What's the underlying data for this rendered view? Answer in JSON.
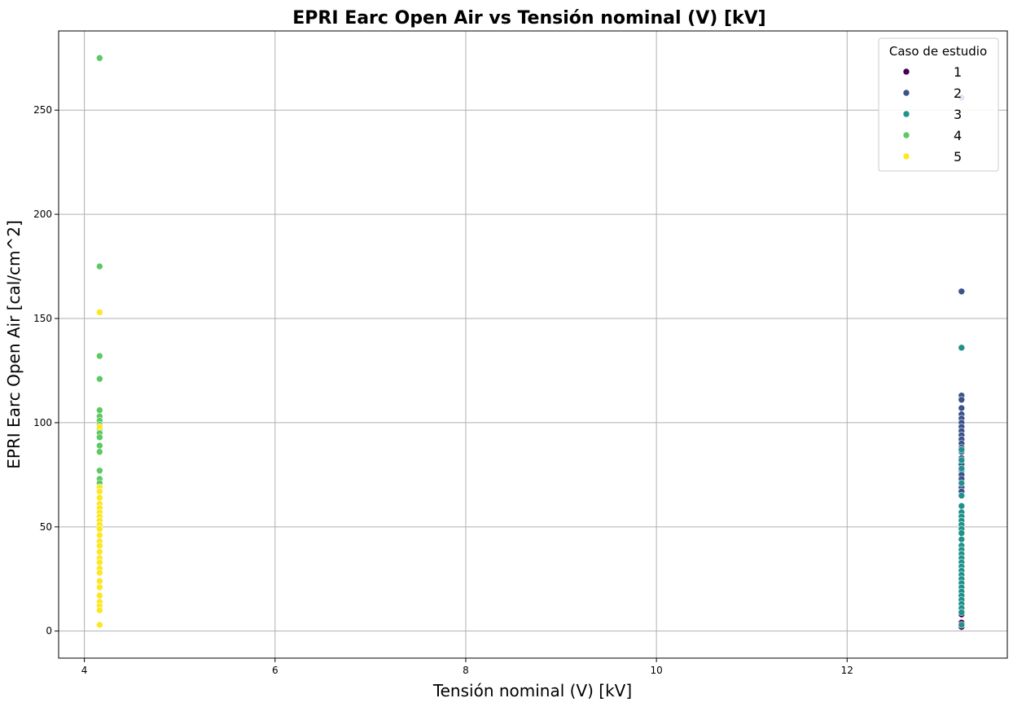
{
  "chart_data": {
    "type": "scatter",
    "title": "EPRI Earc Open Air vs Tensión nominal (V) [kV]",
    "xlabel": "Tensión nominal (V) [kV]",
    "ylabel": "EPRI Earc Open Air [cal/cm^2]",
    "xlim": [
      3.73,
      13.68
    ],
    "ylim": [
      -13,
      288
    ],
    "xticks": [
      4,
      6,
      8,
      10,
      12
    ],
    "yticks": [
      0,
      50,
      100,
      150,
      200,
      250
    ],
    "grid": true,
    "legend": {
      "title": "Caso de estudio",
      "placement": "top-right"
    },
    "series": [
      {
        "name": "1",
        "color": "#440154",
        "points": [
          [
            13.2,
            2
          ],
          [
            13.2,
            4
          ],
          [
            13.2,
            8
          ]
        ]
      },
      {
        "name": "2",
        "color": "#3b528b",
        "points": [
          [
            13.2,
            163
          ],
          [
            13.2,
            113
          ],
          [
            13.2,
            111
          ],
          [
            13.2,
            107
          ],
          [
            13.2,
            104
          ],
          [
            13.2,
            102
          ],
          [
            13.2,
            100
          ],
          [
            13.2,
            98
          ],
          [
            13.2,
            96
          ],
          [
            13.2,
            94
          ],
          [
            13.2,
            92
          ],
          [
            13.2,
            90
          ],
          [
            13.2,
            88
          ],
          [
            13.2,
            86
          ],
          [
            13.2,
            83
          ],
          [
            13.2,
            80
          ],
          [
            13.2,
            77
          ],
          [
            13.2,
            75
          ],
          [
            13.2,
            73
          ],
          [
            13.2,
            71
          ],
          [
            13.2,
            69
          ],
          [
            13.2,
            67
          ],
          [
            13.2,
            256
          ]
        ]
      },
      {
        "name": "3",
        "color": "#21918c",
        "points": [
          [
            13.2,
            136
          ],
          [
            13.2,
            87
          ],
          [
            13.2,
            82
          ],
          [
            13.2,
            78
          ],
          [
            13.2,
            71
          ],
          [
            13.2,
            65
          ],
          [
            13.2,
            60
          ],
          [
            13.2,
            57
          ],
          [
            13.2,
            55
          ],
          [
            13.2,
            53
          ],
          [
            13.2,
            51
          ],
          [
            13.2,
            49
          ],
          [
            13.2,
            47
          ],
          [
            13.2,
            44
          ],
          [
            13.2,
            41
          ],
          [
            13.2,
            39
          ],
          [
            13.2,
            37
          ],
          [
            13.2,
            35
          ],
          [
            13.2,
            33
          ],
          [
            13.2,
            31
          ],
          [
            13.2,
            29
          ],
          [
            13.2,
            27
          ],
          [
            13.2,
            25
          ],
          [
            13.2,
            23
          ],
          [
            13.2,
            21
          ],
          [
            13.2,
            19
          ],
          [
            13.2,
            17
          ],
          [
            13.2,
            15
          ],
          [
            13.2,
            13
          ],
          [
            13.2,
            11
          ],
          [
            13.2,
            9
          ],
          [
            13.2,
            3
          ]
        ]
      },
      {
        "name": "4",
        "color": "#5ec962",
        "points": [
          [
            4.16,
            275
          ],
          [
            4.16,
            175
          ],
          [
            4.16,
            132
          ],
          [
            4.16,
            121
          ],
          [
            4.16,
            106
          ],
          [
            4.16,
            103
          ],
          [
            4.16,
            101
          ],
          [
            4.16,
            99
          ],
          [
            4.16,
            97
          ],
          [
            4.16,
            95
          ],
          [
            4.16,
            93
          ],
          [
            4.16,
            89
          ],
          [
            4.16,
            86
          ],
          [
            4.16,
            77
          ],
          [
            4.16,
            73
          ],
          [
            4.16,
            71
          ]
        ]
      },
      {
        "name": "5",
        "color": "#fde725",
        "points": [
          [
            4.16,
            153
          ],
          [
            4.16,
            98
          ],
          [
            4.16,
            69
          ],
          [
            4.16,
            67
          ],
          [
            4.16,
            64
          ],
          [
            4.16,
            61
          ],
          [
            4.16,
            59
          ],
          [
            4.16,
            57
          ],
          [
            4.16,
            55
          ],
          [
            4.16,
            53
          ],
          [
            4.16,
            51
          ],
          [
            4.16,
            49
          ],
          [
            4.16,
            46
          ],
          [
            4.16,
            43
          ],
          [
            4.16,
            41
          ],
          [
            4.16,
            38
          ],
          [
            4.16,
            35
          ],
          [
            4.16,
            33
          ],
          [
            4.16,
            30
          ],
          [
            4.16,
            28
          ],
          [
            4.16,
            24
          ],
          [
            4.16,
            21
          ],
          [
            4.16,
            17
          ],
          [
            4.16,
            14
          ],
          [
            4.16,
            12
          ],
          [
            4.16,
            10
          ],
          [
            4.16,
            3
          ]
        ]
      }
    ]
  }
}
